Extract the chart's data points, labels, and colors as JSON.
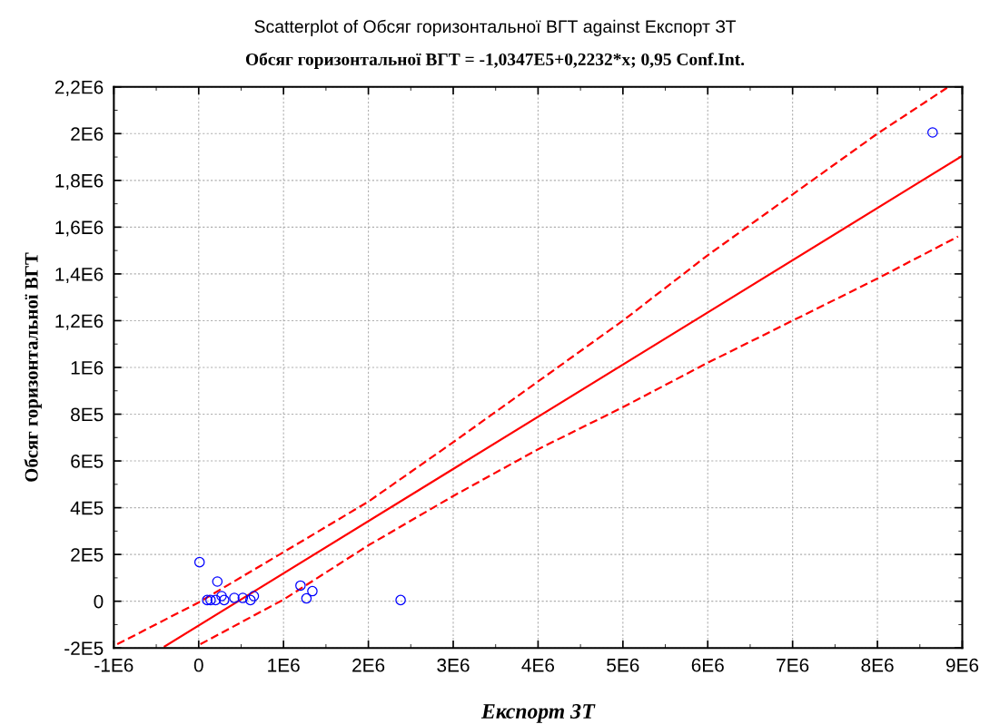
{
  "chart_data": {
    "type": "scatter",
    "title": "Scatterplot of Обсяг горизонтальної ВГТ against Експорт ЗТ",
    "subtitle": "Обсяг горизонтальної ВГТ = -1,0347E5+0,2232*x; 0,95 Conf.Int.",
    "xlabel": "Експорт ЗТ",
    "ylabel": "Обсяг горизонтальної ВГТ",
    "series": [
      {
        "color": "#0000ff",
        "marker": "circle",
        "x": [
          10000,
          220000,
          100000,
          140000,
          200000,
          270000,
          300000,
          420000,
          520000,
          610000,
          650000,
          1200000,
          1340000,
          1270000,
          2380000,
          8650000
        ],
        "values": [
          167000,
          84000,
          5000,
          5000,
          5000,
          22000,
          5000,
          14000,
          14000,
          5000,
          22000,
          67000,
          43000,
          12000,
          5000,
          2005000
        ]
      },
      {
        "type": "line",
        "color": "#ff0000",
        "line_style": "solid",
        "marker": "none",
        "x": [
          -400000,
          9000000
        ],
        "values": [
          -193000,
          1905000
        ]
      },
      {
        "type": "line",
        "color": "#ff0000",
        "line_style": "dashed",
        "marker": "none",
        "x": [
          -960000,
          0,
          1000000,
          2000000,
          3000000,
          4000000,
          5000000,
          6000000,
          7000000,
          8000000,
          8820000
        ],
        "values": [
          -184000,
          -5000,
          210000,
          426000,
          680000,
          940000,
          1200000,
          1480000,
          1740000,
          2000000,
          2196000
        ]
      },
      {
        "type": "line",
        "color": "#ff0000",
        "line_style": "dashed",
        "marker": "none",
        "x": [
          20000,
          1000000,
          2000000,
          3000000,
          4000000,
          5000000,
          6000000,
          7000000,
          8000000,
          8950000
        ],
        "values": [
          -184000,
          7000,
          239000,
          450000,
          650000,
          830000,
          1020000,
          1200000,
          1380000,
          1560000
        ]
      }
    ],
    "xlim": [
      -1000000,
      9000000
    ],
    "xticks": [
      {
        "value": -1000000,
        "label": "-1E6"
      },
      0,
      {
        "value": 1000000,
        "label": "1E6"
      },
      {
        "value": 2000000,
        "label": "2E6"
      },
      {
        "value": 3000000,
        "label": "3E6"
      },
      {
        "value": 4000000,
        "label": "4E6"
      },
      {
        "value": 5000000,
        "label": "5E6"
      },
      {
        "value": 6000000,
        "label": "6E6"
      },
      {
        "value": 7000000,
        "label": "7E6"
      },
      {
        "value": 8000000,
        "label": "8E6"
      },
      {
        "value": 9000000,
        "label": "9E6"
      }
    ],
    "ylim": [
      -200000,
      2200000
    ],
    "yticks": [
      {
        "value": -200000,
        "label": "-2E5"
      },
      0,
      {
        "value": 200000,
        "label": "2E5"
      },
      {
        "value": 400000,
        "label": "4E5"
      },
      {
        "value": 600000,
        "label": "6E5"
      },
      {
        "value": 800000,
        "label": "8E5"
      },
      {
        "value": 1000000,
        "label": "1E6"
      },
      {
        "value": 1200000,
        "label": "1,2E6"
      },
      {
        "value": 1400000,
        "label": "1,4E6"
      },
      {
        "value": 1600000,
        "label": "1,6E6"
      },
      {
        "value": 1800000,
        "label": "1,8E6"
      },
      {
        "value": 2000000,
        "label": "2E6"
      },
      {
        "value": 2200000,
        "label": "2,2E6"
      }
    ],
    "grid": true,
    "legend": false
  }
}
